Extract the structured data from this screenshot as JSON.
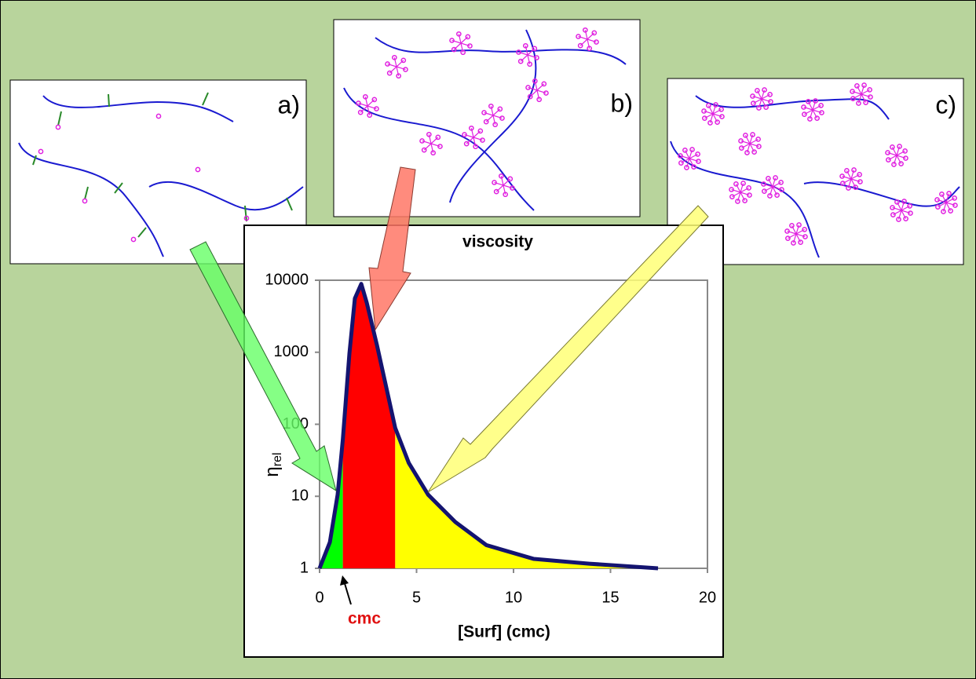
{
  "panels": [
    {
      "label": "a)"
    },
    {
      "label": "b)"
    },
    {
      "label": "c)"
    }
  ],
  "chart_data": {
    "type": "line",
    "title": "viscosity",
    "xlabel": "[Surf] (cmc)",
    "ylabel": "η",
    "ylabel_subscript": "rel",
    "annotation": "cmc",
    "log_y": true,
    "color": "#141470",
    "x": [
      0,
      0.53,
      0.93,
      1.2,
      1.54,
      1.82,
      2.15,
      2.43,
      2.96,
      3.9,
      4.6,
      5.6,
      7.0,
      8.6,
      11.05,
      13.9,
      17.45
    ],
    "values": [
      1,
      2.3,
      10.5,
      62,
      970,
      5600,
      8900,
      4900,
      1250,
      89,
      29,
      10.5,
      4.4,
      2.1,
      1.35,
      1.16,
      1.0
    ],
    "regions": [
      {
        "color": "#00ff00",
        "from": 0,
        "to": 1.2
      },
      {
        "color": "#ff0000",
        "from": 1.2,
        "to": 3.9
      },
      {
        "color": "#ffff00",
        "from": 3.9,
        "to": 17.45
      }
    ],
    "xlim": [
      0,
      20
    ],
    "xticks": [
      0,
      5,
      10,
      15,
      20
    ],
    "ylim": [
      1,
      10000
    ],
    "yticks": [
      1,
      10,
      100,
      1000,
      10000
    ]
  }
}
